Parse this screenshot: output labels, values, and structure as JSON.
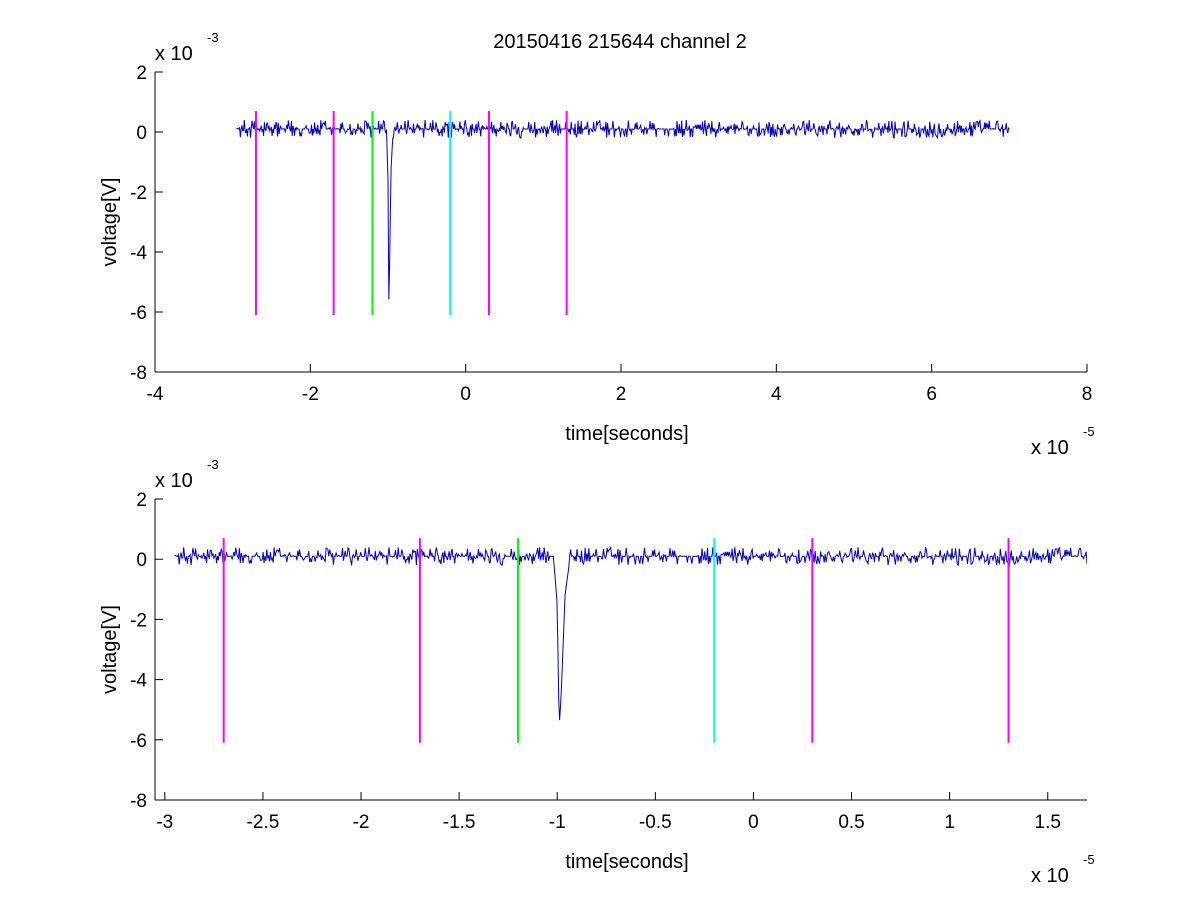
{
  "figure": {
    "title": "20150416 215644 channel 2"
  },
  "chart_data": [
    {
      "type": "line",
      "xlabel": "time[seconds]",
      "ylabel": "voltage[V]",
      "x_multiplier_text": "x 10",
      "x_multiplier_exp": "-5",
      "y_multiplier_text": "x 10",
      "y_multiplier_exp": "-3",
      "xlim": [
        -4e-05,
        8e-05
      ],
      "ylim": [
        -0.008,
        0.002
      ],
      "xticks": [
        -4,
        -2,
        0,
        2,
        4,
        6,
        8
      ],
      "xtick_labels": [
        "-4",
        "-2",
        "0",
        "2",
        "4",
        "6",
        "8"
      ],
      "yticks": [
        -8,
        -6,
        -4,
        -2,
        0,
        2
      ],
      "ytick_labels": [
        "-8",
        "-6",
        "-4",
        "-2",
        "0",
        "2"
      ],
      "grid": false,
      "series": [
        {
          "color": "#0000cc",
          "x_range": [
            -2.95e-05,
            7e-05
          ],
          "baseline": 0.0001,
          "noise_amplitude": 0.0003,
          "spike": {
            "x": [
              -1.02e-05,
              -1e-05,
              -9.9e-06,
              -9.8e-06,
              -9.6e-06,
              -9.4e-06
            ],
            "y": [
              0.0001,
              -0.0015,
              -0.0056,
              -0.0045,
              -0.0012,
              -0.0002
            ]
          }
        }
      ],
      "markers": [
        {
          "x": -2.7e-05,
          "y_range": [
            -0.0061,
            0.0007
          ],
          "color": "#ff00ff"
        },
        {
          "x": -1.7e-05,
          "y_range": [
            -0.0061,
            0.0007
          ],
          "color": "#ff00ff"
        },
        {
          "x": -1.2e-05,
          "y_range": [
            -0.0061,
            0.0007
          ],
          "color": "#00ff00"
        },
        {
          "x": -2e-06,
          "y_range": [
            -0.0061,
            0.0007
          ],
          "color": "#00ffff"
        },
        {
          "x": 3e-06,
          "y_range": [
            -0.0061,
            0.0007
          ],
          "color": "#ff00ff"
        },
        {
          "x": 1.3e-05,
          "y_range": [
            -0.0061,
            0.0007
          ],
          "color": "#ff00ff"
        }
      ]
    },
    {
      "type": "line",
      "xlabel": "time[seconds]",
      "ylabel": "voltage[V]",
      "x_multiplier_text": "x 10",
      "x_multiplier_exp": "-5",
      "y_multiplier_text": "x 10",
      "y_multiplier_exp": "-3",
      "xlim": [
        -3.05e-05,
        1.7e-05
      ],
      "ylim": [
        -0.008,
        0.002
      ],
      "xticks": [
        -3,
        -2.5,
        -2,
        -1.5,
        -1,
        -0.5,
        0,
        0.5,
        1,
        1.5
      ],
      "xtick_labels": [
        "-3",
        "-2.5",
        "-2",
        "-1.5",
        "-1",
        "-0.5",
        "0",
        "0.5",
        "1",
        "1.5"
      ],
      "yticks": [
        -8,
        -6,
        -4,
        -2,
        0,
        2
      ],
      "ytick_labels": [
        "-8",
        "-6",
        "-4",
        "-2",
        "0",
        "2"
      ],
      "grid": false,
      "series": [
        {
          "color": "#0000cc",
          "x_range": [
            -2.95e-05,
            1.7e-05
          ],
          "baseline": 0.0001,
          "noise_amplitude": 0.0003,
          "spike": {
            "x": [
              -1.02e-05,
              -1e-05,
              -9.9e-06,
              -9.8e-06,
              -9.6e-06,
              -9.4e-06
            ],
            "y": [
              0.0001,
              -0.0015,
              -0.0056,
              -0.0045,
              -0.0012,
              -0.0002
            ]
          }
        }
      ],
      "markers": [
        {
          "x": -2.7e-05,
          "y_range": [
            -0.0061,
            0.0007
          ],
          "color": "#ff00ff"
        },
        {
          "x": -1.7e-05,
          "y_range": [
            -0.0061,
            0.0007
          ],
          "color": "#ff00ff"
        },
        {
          "x": -1.2e-05,
          "y_range": [
            -0.0061,
            0.0007
          ],
          "color": "#00ff00"
        },
        {
          "x": -2e-06,
          "y_range": [
            -0.0061,
            0.0007
          ],
          "color": "#00ffff"
        },
        {
          "x": 3e-06,
          "y_range": [
            -0.0061,
            0.0007
          ],
          "color": "#ff00ff"
        },
        {
          "x": 1.3e-05,
          "y_range": [
            -0.0061,
            0.0007
          ],
          "color": "#ff00ff"
        }
      ]
    }
  ]
}
